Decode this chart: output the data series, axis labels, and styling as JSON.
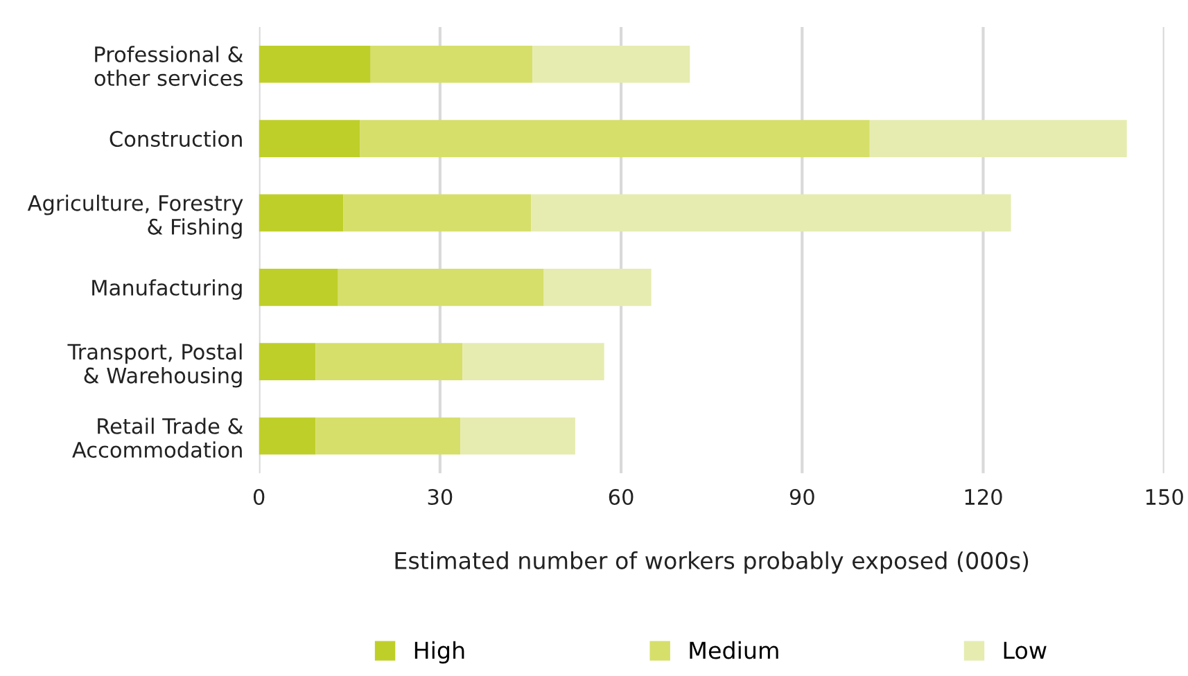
{
  "chart_data": {
    "type": "bar",
    "orientation": "horizontal",
    "stacked": true,
    "categories": [
      "Professional &\nother services",
      "Construction",
      "Agriculture, Forestry\n& Fishing",
      "Manufacturing",
      "Transport, Postal\n& Warehousing",
      "Retail Trade &\nAccommodation"
    ],
    "series": [
      {
        "name": "High",
        "color": "#bfcf2a",
        "values": [
          18.5,
          16.7,
          14.0,
          13.1,
          9.4,
          9.4
        ]
      },
      {
        "name": "Medium",
        "color": "#d6df6a",
        "values": [
          26.8,
          84.5,
          31.1,
          34.1,
          24.3,
          24.0
        ]
      },
      {
        "name": "Low",
        "color": "#e6ecb0",
        "values": [
          26.1,
          42.6,
          79.5,
          17.8,
          23.5,
          19.0
        ]
      }
    ],
    "xlim": [
      0,
      150
    ],
    "xticks": [
      0,
      30,
      60,
      90,
      120,
      150
    ],
    "xlabel": "Estimated number of workers probably exposed (000s)",
    "grid": "x",
    "legend": "bottom"
  }
}
